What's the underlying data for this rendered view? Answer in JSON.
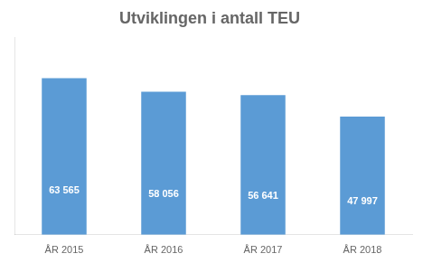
{
  "chart_data": {
    "type": "bar",
    "title": "Utviklingen i antall TEU",
    "categories": [
      "ÅR 2015",
      "ÅR 2016",
      "ÅR 2017",
      "ÅR 2018"
    ],
    "values": [
      63565,
      58056,
      56641,
      47997
    ],
    "value_labels": [
      "63 565",
      "58 056",
      "56 641",
      "47 997"
    ],
    "color": "#5b9bd5",
    "ylim": [
      0,
      80000
    ],
    "grid": false,
    "data_labels": true,
    "tick_labels": "x"
  }
}
